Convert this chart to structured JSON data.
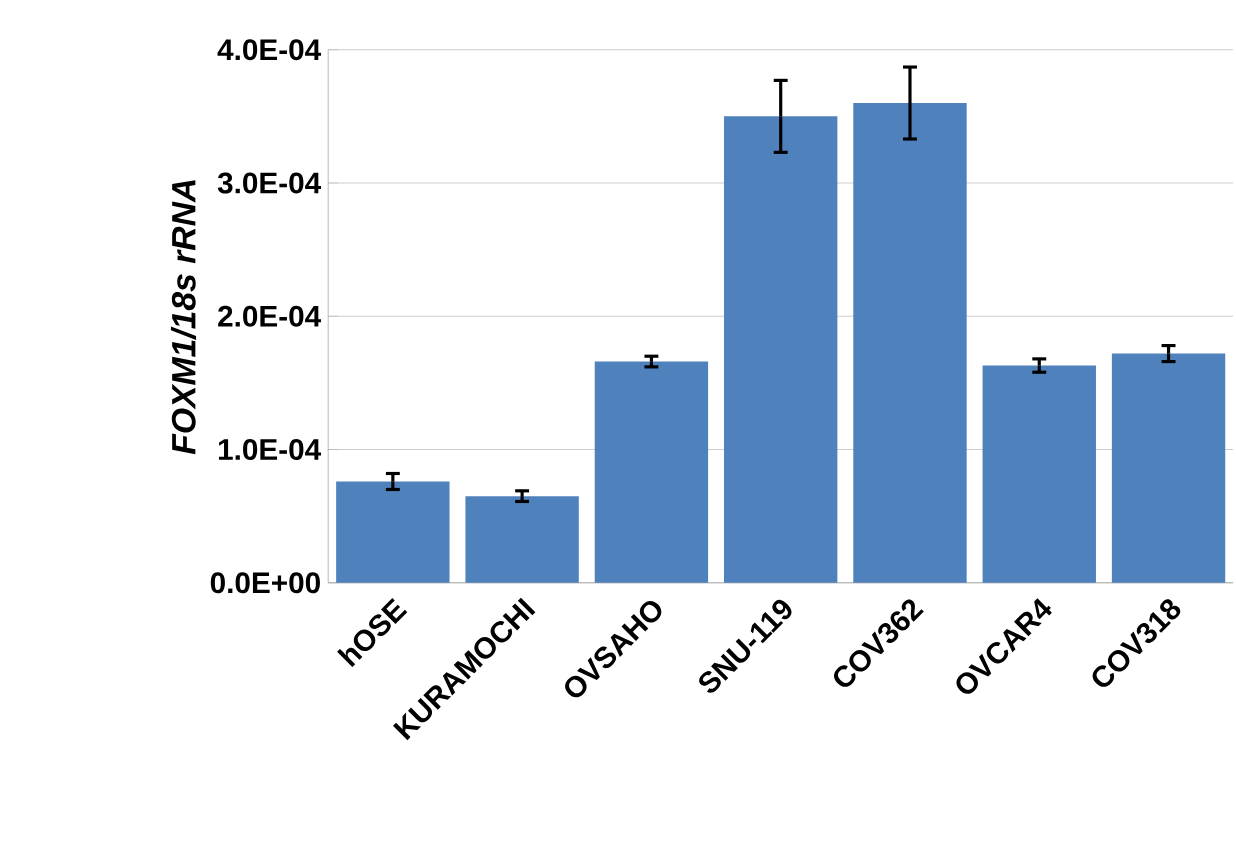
{
  "chart_data": {
    "type": "bar",
    "ylabel": "FOXM1/18s rRNA",
    "categories": [
      "hOSE",
      "KURAMOCHI",
      "OVSAHO",
      "SNU-119",
      "COV362",
      "OVCAR4",
      "COV318"
    ],
    "values": [
      7.6e-05,
      6.5e-05,
      0.000166,
      0.00035,
      0.00036,
      0.000163,
      0.000172
    ],
    "errors": [
      6e-06,
      4e-06,
      4e-06,
      2.7e-05,
      2.7e-05,
      5e-06,
      6e-06
    ],
    "color": "#4f81bd",
    "ylim": [
      0,
      0.0004
    ],
    "yticks": [
      {
        "value": 0,
        "label": "0.0E+00"
      },
      {
        "value": 0.0001,
        "label": "1.0E-04"
      },
      {
        "value": 0.0002,
        "label": "2.0E-04"
      },
      {
        "value": 0.0003,
        "label": "3.0E-04"
      },
      {
        "value": 0.0004,
        "label": "4.0E-04"
      }
    ],
    "grid": "y"
  }
}
